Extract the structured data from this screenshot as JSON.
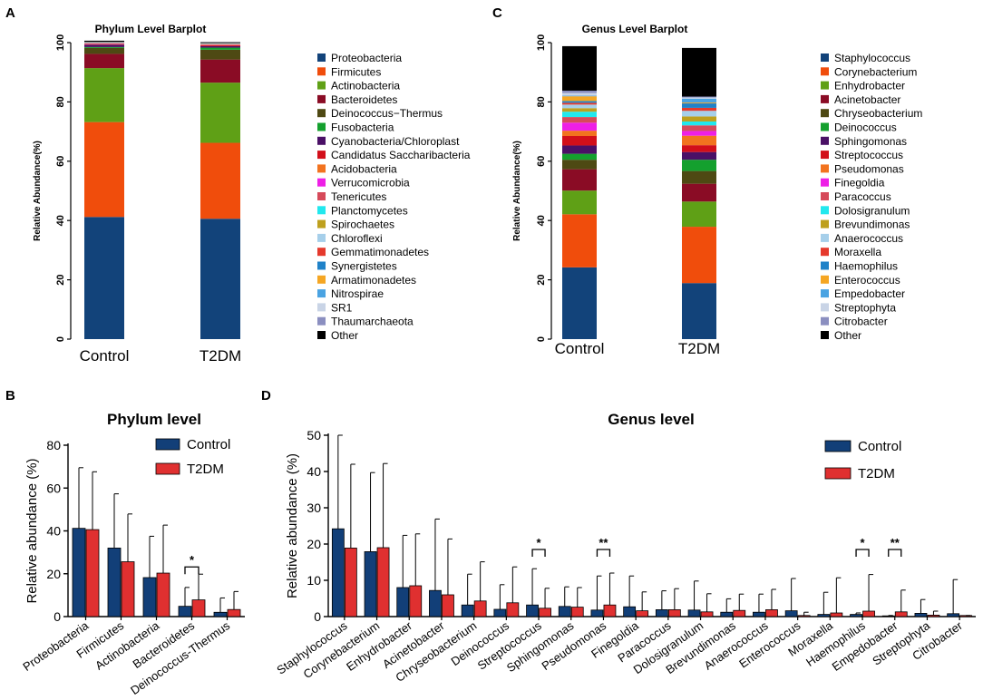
{
  "panel_letters": {
    "a": "A",
    "b": "B",
    "c": "C",
    "d": "D"
  },
  "colors": {
    "control": "#123F78",
    "t2dm": "#E03030",
    "axis": "#000000",
    "error": "#000000"
  },
  "chart_data": [
    {
      "id": "A",
      "type": "bar",
      "stacked": true,
      "title": "Phylum Level Barplot",
      "ylabel": "Relative Abundance(%)",
      "ylim": [
        0,
        100
      ],
      "yticks": [
        "0",
        "20",
        "40",
        "60",
        "80",
        "100"
      ],
      "categories": [
        "Control",
        "T2DM"
      ],
      "series": [
        {
          "name": "Proteobacteria",
          "color": "#12437A",
          "values": [
            41.2,
            40.6
          ]
        },
        {
          "name": "Firmicutes",
          "color": "#F04D0C",
          "values": [
            32.0,
            25.6
          ]
        },
        {
          "name": "Actinobacteria",
          "color": "#5FA016",
          "values": [
            18.2,
            20.3
          ]
        },
        {
          "name": "Bacteroidetes",
          "color": "#8A0C25",
          "values": [
            4.8,
            7.8
          ]
        },
        {
          "name": "Deinococcus−Thermus",
          "color": "#4E4913",
          "values": [
            2.0,
            3.3
          ]
        },
        {
          "name": "Fusobacteria",
          "color": "#14A02E",
          "values": [
            0.3,
            0.7
          ]
        },
        {
          "name": "Cyanobacteria/Chloroplast",
          "color": "#4A1066",
          "values": [
            0.8,
            0.5
          ]
        },
        {
          "name": "Candidatus Saccharibacteria",
          "color": "#D20F1A",
          "values": [
            0.2,
            0.3
          ]
        },
        {
          "name": "Acidobacteria",
          "color": "#F2731F",
          "values": [
            0.1,
            0.1
          ]
        },
        {
          "name": "Verrucomicrobia",
          "color": "#EE1FE6",
          "values": [
            0.1,
            0.1
          ]
        },
        {
          "name": "Tenericutes",
          "color": "#D64A5A",
          "values": [
            0.1,
            0.1
          ]
        },
        {
          "name": "Planctomycetes",
          "color": "#22E8EE",
          "values": [
            0.05,
            0.05
          ]
        },
        {
          "name": "Spirochaetes",
          "color": "#BEA01E",
          "values": [
            0.05,
            0.05
          ]
        },
        {
          "name": "Chloroflexi",
          "color": "#A6CFEA",
          "values": [
            0.05,
            0.05
          ]
        },
        {
          "name": "Gemmatimonadetes",
          "color": "#E5392C",
          "values": [
            0.05,
            0.05
          ]
        },
        {
          "name": "Synergistetes",
          "color": "#2082C8",
          "values": [
            0.05,
            0.05
          ]
        },
        {
          "name": "Armatimonadetes",
          "color": "#F5A623",
          "values": [
            0.05,
            0.05
          ]
        },
        {
          "name": "Nitrospirae",
          "color": "#4AA3E2",
          "values": [
            0.05,
            0.05
          ]
        },
        {
          "name": "SR1",
          "color": "#C9D4E6",
          "values": [
            0.05,
            0.05
          ]
        },
        {
          "name": "Thaumarchaeota",
          "color": "#8B8FC0",
          "values": [
            0.05,
            0.05
          ]
        },
        {
          "name": "Other",
          "color": "#000000",
          "values": [
            0.4,
            0.3
          ]
        }
      ]
    },
    {
      "id": "C",
      "type": "bar",
      "stacked": true,
      "title": "Genus Level Barplot",
      "ylabel": "Relative Abundance(%)",
      "ylim": [
        0,
        100
      ],
      "yticks": [
        "0",
        "20",
        "40",
        "60",
        "80",
        "100"
      ],
      "categories": [
        "Control",
        "T2DM"
      ],
      "series": [
        {
          "name": "Staphylococcus",
          "color": "#12437A",
          "values": [
            24.2,
            18.9
          ]
        },
        {
          "name": "Corynebacterium",
          "color": "#F04D0C",
          "values": [
            17.9,
            19.0
          ]
        },
        {
          "name": "Enhydrobacter",
          "color": "#5FA016",
          "values": [
            8.0,
            8.5
          ]
        },
        {
          "name": "Acinetobacter",
          "color": "#8A0C25",
          "values": [
            7.2,
            6.0
          ]
        },
        {
          "name": "Chryseobacterium",
          "color": "#4E4913",
          "values": [
            3.2,
            4.3
          ]
        },
        {
          "name": "Deinococcus",
          "color": "#14A02E",
          "values": [
            2.0,
            3.8
          ]
        },
        {
          "name": "Sphingomonas",
          "color": "#4A1066",
          "values": [
            2.8,
            2.6
          ]
        },
        {
          "name": "Streptococcus",
          "color": "#D20F1A",
          "values": [
            3.2,
            2.3
          ]
        },
        {
          "name": "Pseudomonas",
          "color": "#F2731F",
          "values": [
            1.8,
            3.2
          ]
        },
        {
          "name": "Finegoldia",
          "color": "#EE1FE6",
          "values": [
            2.7,
            1.6
          ]
        },
        {
          "name": "Paracoccus",
          "color": "#D64A5A",
          "values": [
            1.9,
            1.9
          ]
        },
        {
          "name": "Dolosigranulum",
          "color": "#22E8EE",
          "values": [
            1.8,
            1.3
          ]
        },
        {
          "name": "Brevundimonas",
          "color": "#BEA01E",
          "values": [
            1.2,
            1.7
          ]
        },
        {
          "name": "Anaerococcus",
          "color": "#A6CFEA",
          "values": [
            1.2,
            1.9
          ]
        },
        {
          "name": "Moraxella",
          "color": "#E5392C",
          "values": [
            0.6,
            1.0
          ]
        },
        {
          "name": "Haemophilus",
          "color": "#2082C8",
          "values": [
            0.6,
            1.5
          ]
        },
        {
          "name": "Enterococcus",
          "color": "#F5A623",
          "values": [
            1.6,
            0.3
          ]
        },
        {
          "name": "Empedobacter",
          "color": "#4AA3E2",
          "values": [
            0.2,
            1.3
          ]
        },
        {
          "name": "Streptophyta",
          "color": "#C9D4E6",
          "values": [
            0.9,
            0.4
          ]
        },
        {
          "name": "Citrobacter",
          "color": "#8B8FC0",
          "values": [
            0.8,
            0.3
          ]
        },
        {
          "name": "Other",
          "color": "#000000",
          "values": [
            15.0,
            16.4
          ]
        }
      ]
    },
    {
      "id": "B",
      "type": "bar",
      "title": "Phylum level",
      "ylabel": "Relative abundance (%)",
      "ylim": [
        0,
        80
      ],
      "yticks": [
        "0",
        "20",
        "40",
        "60",
        "80"
      ],
      "categories": [
        "Proteobacteria",
        "Firmicutes",
        "Actinobacteria",
        "Bacteroidetes",
        "Deinococcus-Thermus"
      ],
      "series": [
        {
          "name": "Control",
          "values": [
            41.2,
            32.0,
            18.2,
            4.8,
            2.0
          ],
          "errors": [
            28.3,
            25.3,
            19.3,
            8.8,
            6.7
          ]
        },
        {
          "name": "T2DM",
          "values": [
            40.6,
            25.6,
            20.3,
            7.8,
            3.3
          ],
          "errors": [
            27.0,
            22.3,
            22.4,
            12.0,
            8.4
          ]
        }
      ],
      "significance": [
        {
          "category": 3,
          "label": "*"
        }
      ],
      "legend_position": "top-right"
    },
    {
      "id": "D",
      "type": "bar",
      "title": "Genus level",
      "ylabel": "Relative abundance (%)",
      "ylim": [
        0,
        50
      ],
      "yticks": [
        "0",
        "10",
        "20",
        "30",
        "40",
        "50"
      ],
      "categories": [
        "Staphylococcus",
        "Corynebacterium",
        "Enhydrobacter",
        "Acinetobacter",
        "Chryseobacterium",
        "Deinococcus",
        "Streptococcus",
        "Sphingomonas",
        "Pseudomonas",
        "Finegoldia",
        "Paracoccus",
        "Dolosigranulum",
        "Brevundimonas",
        "Anaerococcus",
        "Enterococcus",
        "Moraxella",
        "Haemophilus",
        "Empedobacter",
        "Streptophyta",
        "Citrobacter"
      ],
      "series": [
        {
          "name": "Control",
          "values": [
            24.2,
            17.9,
            8.0,
            7.2,
            3.2,
            2.0,
            3.2,
            2.8,
            1.8,
            2.7,
            1.9,
            1.8,
            1.2,
            1.2,
            1.6,
            0.6,
            0.6,
            0.2,
            0.9,
            0.8
          ],
          "errors": [
            25.8,
            21.8,
            14.4,
            19.7,
            8.5,
            6.8,
            10.0,
            5.4,
            9.4,
            8.5,
            5.2,
            8.0,
            3.7,
            5.0,
            8.9,
            6.1,
            0.4,
            0.1,
            3.8,
            9.4
          ]
        },
        {
          "name": "T2DM",
          "values": [
            18.9,
            19.0,
            8.5,
            6.0,
            4.3,
            3.8,
            2.3,
            2.6,
            3.2,
            1.6,
            1.9,
            1.3,
            1.7,
            1.9,
            0.3,
            1.0,
            1.5,
            1.3,
            0.4,
            0.3
          ],
          "errors": [
            23.1,
            23.2,
            14.3,
            15.4,
            10.8,
            9.9,
            5.5,
            5.4,
            8.8,
            5.2,
            5.8,
            5.0,
            4.5,
            5.6,
            0.9,
            9.7,
            10.1,
            6.0,
            1.1,
            0.0
          ]
        }
      ],
      "significance": [
        {
          "category": 6,
          "label": "*"
        },
        {
          "category": 8,
          "label": "**"
        },
        {
          "category": 16,
          "label": "*"
        },
        {
          "category": 17,
          "label": "**"
        }
      ],
      "legend_position": "top-right"
    }
  ]
}
